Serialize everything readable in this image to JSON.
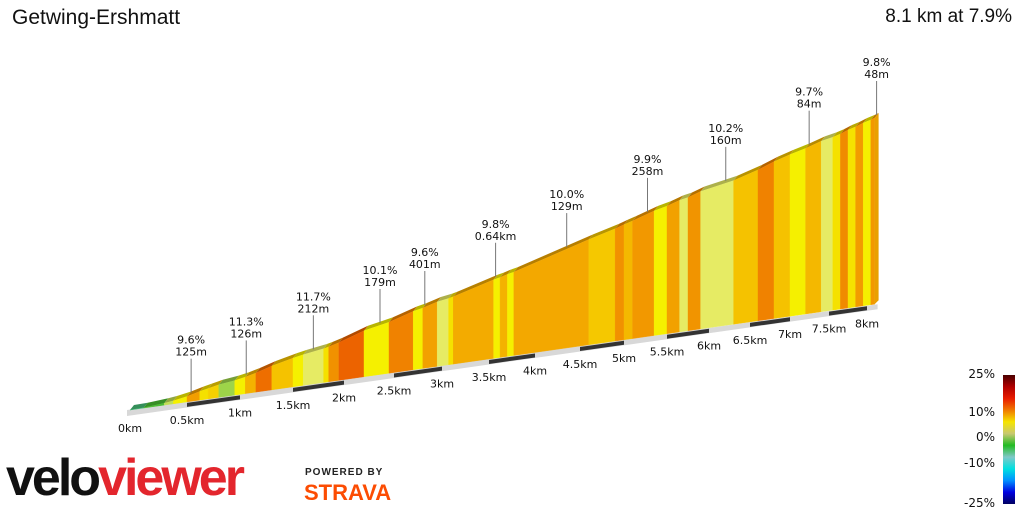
{
  "header": {
    "title": "Getwing-Ershmatt",
    "summary": "8.1 km at 7.9%"
  },
  "branding": {
    "logo_part1": "velo",
    "logo_part2": "viewer",
    "powered_by": "POWERED BY",
    "strava": "STRAVA",
    "strava_color": "#fc4c02",
    "logo_red": "#e3262d"
  },
  "legend": {
    "labels": [
      "25%",
      "10%",
      "0%",
      "-10%",
      "-25%"
    ],
    "stops": [
      "#4a0000",
      "#b00000",
      "#e81c00",
      "#f07a00",
      "#f5e400",
      "#c8c870",
      "#22bb22",
      "#7fc8c8",
      "#00e0e0",
      "#0090ff",
      "#0000e0",
      "#000060"
    ]
  },
  "chart_data": {
    "type": "area",
    "title": "Getwing-Ershmatt",
    "xlabel": "",
    "ylabel": "",
    "distance_km": 8.1,
    "avg_gradient_pct": 7.9,
    "x_ticks": [
      "0km",
      "0.5km",
      "1km",
      "1.5km",
      "2km",
      "2.5km",
      "3km",
      "3.5km",
      "4km",
      "4.5km",
      "5km",
      "5.5km",
      "6km",
      "6.5km",
      "7km",
      "7.5km",
      "8km"
    ],
    "segments": [
      {
        "start": 0,
        "end": 0.12,
        "grade": 1
      },
      {
        "start": 0.12,
        "end": 0.3,
        "grade": 3
      },
      {
        "start": 0.3,
        "end": 0.38,
        "grade": 5
      },
      {
        "start": 0.38,
        "end": 0.5,
        "grade": 7
      },
      {
        "start": 0.5,
        "end": 0.62,
        "grade": 9.6
      },
      {
        "start": 0.62,
        "end": 0.7,
        "grade": 7.5
      },
      {
        "start": 0.7,
        "end": 0.8,
        "grade": 8
      },
      {
        "start": 0.8,
        "end": 0.95,
        "grade": 4.5
      },
      {
        "start": 0.95,
        "end": 1.05,
        "grade": 7
      },
      {
        "start": 1.05,
        "end": 1.15,
        "grade": 9
      },
      {
        "start": 1.15,
        "end": 1.3,
        "grade": 11.3
      },
      {
        "start": 1.3,
        "end": 1.5,
        "grade": 8.5
      },
      {
        "start": 1.5,
        "end": 1.6,
        "grade": 7
      },
      {
        "start": 1.6,
        "end": 1.8,
        "grade": 5.5
      },
      {
        "start": 1.8,
        "end": 1.85,
        "grade": 7.5
      },
      {
        "start": 1.85,
        "end": 1.95,
        "grade": 10
      },
      {
        "start": 1.95,
        "end": 2.2,
        "grade": 11.7
      },
      {
        "start": 2.2,
        "end": 2.45,
        "grade": 7
      },
      {
        "start": 2.45,
        "end": 2.7,
        "grade": 10.5
      },
      {
        "start": 2.7,
        "end": 2.8,
        "grade": 7
      },
      {
        "start": 2.8,
        "end": 2.95,
        "grade": 9.5
      },
      {
        "start": 2.95,
        "end": 3.07,
        "grade": 5.5
      },
      {
        "start": 3.07,
        "end": 3.12,
        "grade": 7.5
      },
      {
        "start": 3.12,
        "end": 3.55,
        "grade": 9.2
      },
      {
        "start": 3.55,
        "end": 3.62,
        "grade": 7
      },
      {
        "start": 3.62,
        "end": 3.7,
        "grade": 9
      },
      {
        "start": 3.7,
        "end": 3.77,
        "grade": 7
      },
      {
        "start": 3.77,
        "end": 4.6,
        "grade": 9.3
      },
      {
        "start": 4.6,
        "end": 4.9,
        "grade": 8.3
      },
      {
        "start": 4.9,
        "end": 5.0,
        "grade": 10
      },
      {
        "start": 5.0,
        "end": 5.1,
        "grade": 8.8
      },
      {
        "start": 5.1,
        "end": 5.35,
        "grade": 9.8
      },
      {
        "start": 5.35,
        "end": 5.5,
        "grade": 7
      },
      {
        "start": 5.5,
        "end": 5.65,
        "grade": 9.5
      },
      {
        "start": 5.65,
        "end": 5.75,
        "grade": 5.5
      },
      {
        "start": 5.75,
        "end": 5.9,
        "grade": 9.9
      },
      {
        "start": 5.9,
        "end": 6.3,
        "grade": 5.5
      },
      {
        "start": 6.3,
        "end": 6.6,
        "grade": 8.5
      },
      {
        "start": 6.6,
        "end": 6.8,
        "grade": 10.5
      },
      {
        "start": 6.8,
        "end": 7.0,
        "grade": 8.5
      },
      {
        "start": 7.0,
        "end": 7.2,
        "grade": 7
      },
      {
        "start": 7.2,
        "end": 7.4,
        "grade": 8.8
      },
      {
        "start": 7.4,
        "end": 7.55,
        "grade": 5.5
      },
      {
        "start": 7.55,
        "end": 7.65,
        "grade": 7.5
      },
      {
        "start": 7.65,
        "end": 7.75,
        "grade": 10.2
      },
      {
        "start": 7.75,
        "end": 7.85,
        "grade": 7.5
      },
      {
        "start": 7.85,
        "end": 7.95,
        "grade": 9.7
      },
      {
        "start": 7.95,
        "end": 8.05,
        "grade": 7
      },
      {
        "start": 8.05,
        "end": 8.1,
        "grade": 9.8
      }
    ],
    "annotations": [
      {
        "km": 0.52,
        "grade": "9.6%",
        "length": "125m"
      },
      {
        "km": 1.04,
        "grade": "11.3%",
        "length": "126m"
      },
      {
        "km": 1.68,
        "grade": "11.7%",
        "length": "212m"
      },
      {
        "km": 2.34,
        "grade": "10.1%",
        "length": "179m"
      },
      {
        "km": 2.8,
        "grade": "9.6%",
        "length": "401m"
      },
      {
        "km": 3.55,
        "grade": "9.8%",
        "length": "0.64km"
      },
      {
        "km": 4.33,
        "grade": "10.0%",
        "length": "129m"
      },
      {
        "km": 5.25,
        "grade": "9.9%",
        "length": "258m"
      },
      {
        "km": 6.18,
        "grade": "10.2%",
        "length": "160m"
      },
      {
        "km": 7.22,
        "grade": "9.7%",
        "length": "84m"
      },
      {
        "km": 8.1,
        "grade": "9.8%",
        "length": "48m"
      }
    ]
  }
}
